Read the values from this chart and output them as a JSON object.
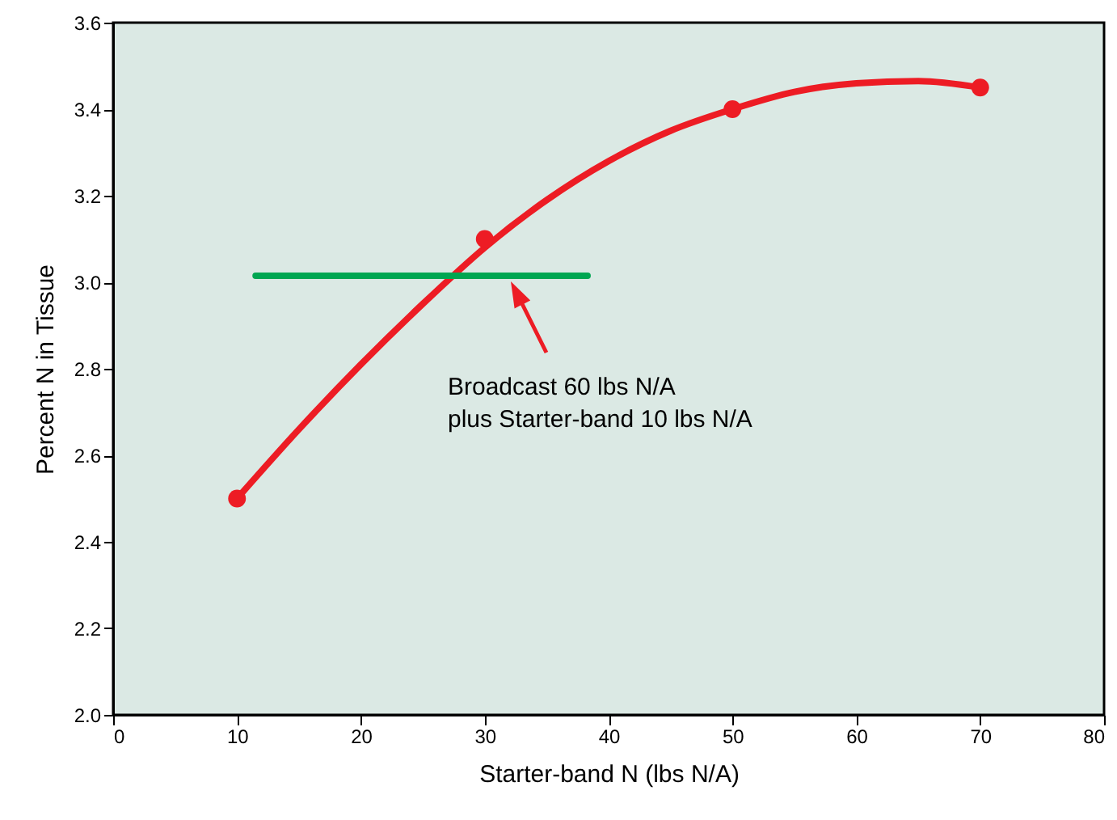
{
  "chart_data": {
    "type": "scatter",
    "xlabel": "Starter-band N (lbs N/A)",
    "ylabel": "Percent N in Tissue",
    "xlim": [
      0,
      80
    ],
    "xticks": [
      0,
      10,
      20,
      30,
      40,
      50,
      60,
      70,
      80
    ],
    "ylim": [
      2.0,
      3.6
    ],
    "yticks": [
      {
        "value": 2.0,
        "label": "2.0"
      },
      2.2,
      2.4,
      2.6,
      2.8,
      {
        "value": 3.0,
        "label": "3.0"
      },
      3.2,
      3.4,
      3.6
    ],
    "grid": false,
    "series": [
      {
        "type": "line",
        "color": "#ed1c24",
        "marker": "none",
        "x": [
          10,
          15,
          20,
          25,
          30,
          35,
          40,
          45,
          50,
          55,
          60,
          65,
          70
        ],
        "values": [
          2.5,
          2.66,
          2.81,
          2.95,
          3.08,
          3.19,
          3.28,
          3.35,
          3.4,
          3.44,
          3.46,
          3.465,
          3.45
        ]
      },
      {
        "color": "#ed1c24",
        "marker": "circle",
        "x": [
          10,
          30,
          50,
          70
        ],
        "values": [
          2.5,
          3.1,
          3.4,
          3.45
        ]
      },
      {
        "type": "line",
        "color": "#00a651",
        "marker": "none",
        "x": [
          11.5,
          38.3
        ],
        "values": [
          3.015,
          3.015
        ]
      }
    ],
    "annotations": [
      "Broadcast 60 lbs N/A\nplus Starter-band 10 lbs N/A"
    ]
  }
}
